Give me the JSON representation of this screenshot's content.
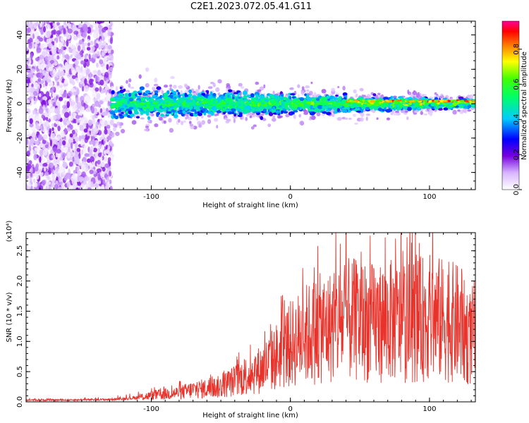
{
  "title": "C2E1.2023.072.05.41.G11",
  "chart_data": [
    {
      "type": "heatmap",
      "xlabel": "Height of straight line (km)",
      "ylabel": "Frequency (Hz)",
      "xlim": [
        -190,
        133
      ],
      "ylim": [
        -50,
        48
      ],
      "xticks": [
        "-100",
        "0",
        "100"
      ],
      "yticks": [
        "-40",
        "-20",
        "0",
        "20",
        "40"
      ],
      "colorbar": {
        "label": "Normalized spectral amplitude",
        "range": [
          0.0,
          0.96
        ],
        "ticks": [
          "0.0",
          "0.2",
          "0.4",
          "0.6",
          "0.8"
        ]
      },
      "features": [
        {
          "x_range": [
            -190,
            -128
          ],
          "freq_range": [
            -50,
            48
          ],
          "amplitude_range": [
            0.02,
            0.2
          ]
        },
        {
          "x_range": [
            -128,
            133
          ],
          "freq_center": 0,
          "freq_halfwidth": 10,
          "amplitude_range": [
            0.1,
            0.9
          ]
        }
      ]
    },
    {
      "type": "line",
      "xlabel": "Height of straight line (km)",
      "ylabel": "SNR (10 * v/v)",
      "scale_label": "(x10⁴)",
      "xlim": [
        -190,
        133
      ],
      "ylim": [
        0.0,
        2.8
      ],
      "xticks": [
        "-100",
        "0",
        "100"
      ],
      "yticks": [
        "0.0",
        "0.5",
        "1.0",
        "1.5",
        "2.0",
        "2.5"
      ],
      "series": [
        {
          "color": "#e8322a",
          "x": [
            -190,
            -160,
            -130,
            -115,
            -100,
            -90,
            -80,
            -70,
            -60,
            -50,
            -40,
            -30,
            -20,
            -10,
            0,
            10,
            20,
            30,
            40,
            50,
            60,
            70,
            80,
            90,
            100,
            110,
            120,
            125,
            130,
            133
          ],
          "y": [
            0.03,
            0.03,
            0.04,
            0.06,
            0.1,
            0.13,
            0.15,
            0.2,
            0.22,
            0.25,
            0.35,
            0.45,
            0.55,
            0.75,
            0.95,
            1.1,
            1.2,
            1.25,
            1.35,
            1.35,
            1.3,
            1.35,
            1.3,
            1.35,
            1.4,
            1.35,
            1.3,
            1.15,
            1.05,
            1.2
          ]
        }
      ]
    }
  ]
}
